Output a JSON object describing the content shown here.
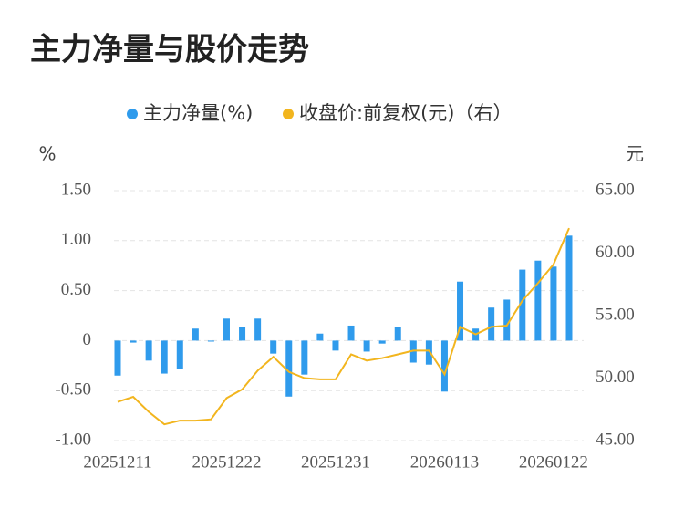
{
  "chart_data": {
    "type": "bar_line",
    "title": "主力净量与股价走势",
    "y_unit": "%",
    "y2_unit": "元",
    "categories": [
      "20251211",
      null,
      null,
      null,
      null,
      null,
      null,
      "20251222",
      null,
      null,
      null,
      null,
      null,
      null,
      "20251231",
      null,
      null,
      null,
      null,
      null,
      null,
      "20260113",
      null,
      null,
      null,
      null,
      null,
      null,
      "20260122",
      null
    ],
    "series": [
      {
        "name": "主力净量(%)",
        "type": "bar",
        "color": "#2f9bec",
        "values": [
          -0.35,
          -0.02,
          -0.2,
          -0.33,
          -0.28,
          0.12,
          -0.01,
          0.22,
          0.14,
          0.22,
          -0.13,
          -0.56,
          -0.34,
          0.07,
          -0.1,
          0.15,
          -0.11,
          -0.03,
          0.14,
          -0.22,
          -0.24,
          -0.51,
          0.59,
          0.12,
          0.33,
          0.41,
          0.71,
          0.8,
          0.74,
          1.05
        ]
      },
      {
        "name": "收盘价:前复权(元)（右）",
        "type": "line",
        "axis": "y2",
        "color": "#f2b51e",
        "values": [
          48.1,
          48.5,
          47.3,
          46.3,
          46.6,
          46.6,
          46.7,
          48.4,
          49.1,
          50.6,
          51.7,
          50.5,
          50.0,
          49.9,
          49.9,
          51.9,
          51.4,
          51.6,
          51.9,
          52.2,
          52.2,
          50.3,
          54.1,
          53.5,
          54.1,
          54.2,
          56.2,
          57.6,
          59.1,
          62.0
        ]
      }
    ],
    "ylim": [
      -1,
      1.5
    ],
    "yticks": [
      {
        "value": 1.5,
        "label": "1.50"
      },
      {
        "value": 1,
        "label": "1.00"
      },
      {
        "value": 0.5,
        "label": "0.50"
      },
      0,
      {
        "value": -0.5,
        "label": "-0.50"
      },
      {
        "value": -1,
        "label": "-1.00"
      }
    ],
    "y2lim": [
      45,
      65
    ],
    "y2ticks": [
      {
        "value": 65,
        "label": "65.00"
      },
      {
        "value": 60,
        "label": "60.00"
      },
      {
        "value": 55,
        "label": "55.00"
      },
      {
        "value": 50,
        "label": "50.00"
      },
      {
        "value": 45,
        "label": "45.00"
      }
    ],
    "grid": true
  }
}
